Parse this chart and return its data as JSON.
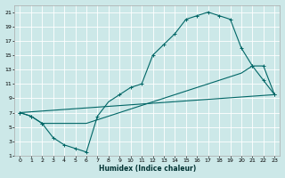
{
  "xlabel": "Humidex (Indice chaleur)",
  "bg_color": "#cce8e8",
  "grid_color": "#ffffff",
  "line_color": "#006666",
  "xlim": [
    -0.5,
    23.5
  ],
  "ylim": [
    1,
    22
  ],
  "xticks": [
    0,
    1,
    2,
    3,
    4,
    5,
    6,
    7,
    8,
    9,
    10,
    11,
    12,
    13,
    14,
    15,
    16,
    17,
    18,
    19,
    20,
    21,
    22,
    23
  ],
  "yticks": [
    1,
    3,
    5,
    7,
    9,
    11,
    13,
    15,
    17,
    19,
    21
  ],
  "line1_x": [
    0,
    1,
    2,
    3,
    4,
    5,
    6,
    7,
    8,
    9,
    10,
    11,
    12,
    13,
    14,
    15,
    16,
    17,
    18,
    19,
    20,
    21,
    22,
    23
  ],
  "line1_y": [
    7,
    6.5,
    5.5,
    3.5,
    2.5,
    2.0,
    1.5,
    6.5,
    8.5,
    9.5,
    10.5,
    11.0,
    15.0,
    16.5,
    18.0,
    20.0,
    20.5,
    21.0,
    20.5,
    20.0,
    16.0,
    13.5,
    11.5,
    9.5
  ],
  "line1_markers": [
    true,
    true,
    true,
    true,
    true,
    true,
    true,
    true,
    false,
    true,
    true,
    true,
    true,
    true,
    true,
    true,
    true,
    true,
    true,
    true,
    true,
    true,
    true,
    true
  ],
  "line2_x": [
    0,
    1,
    2,
    3,
    4,
    5,
    6,
    7,
    8,
    9,
    10,
    11,
    12,
    13,
    14,
    15,
    16,
    17,
    18,
    19,
    20,
    21,
    22,
    23
  ],
  "line2_y": [
    7,
    6.5,
    5.5,
    5.5,
    5.5,
    5.5,
    5.5,
    6.0,
    6.5,
    7.0,
    7.5,
    8.0,
    8.5,
    9.0,
    9.5,
    10.0,
    10.5,
    11.0,
    11.5,
    12.0,
    12.5,
    13.5,
    13.5,
    9.5
  ],
  "line2_markers": [
    true,
    true,
    true,
    false,
    false,
    false,
    false,
    false,
    false,
    false,
    false,
    false,
    false,
    false,
    false,
    false,
    false,
    false,
    false,
    false,
    false,
    true,
    true,
    true
  ],
  "line3_x": [
    0,
    23
  ],
  "line3_y": [
    7,
    9.5
  ]
}
